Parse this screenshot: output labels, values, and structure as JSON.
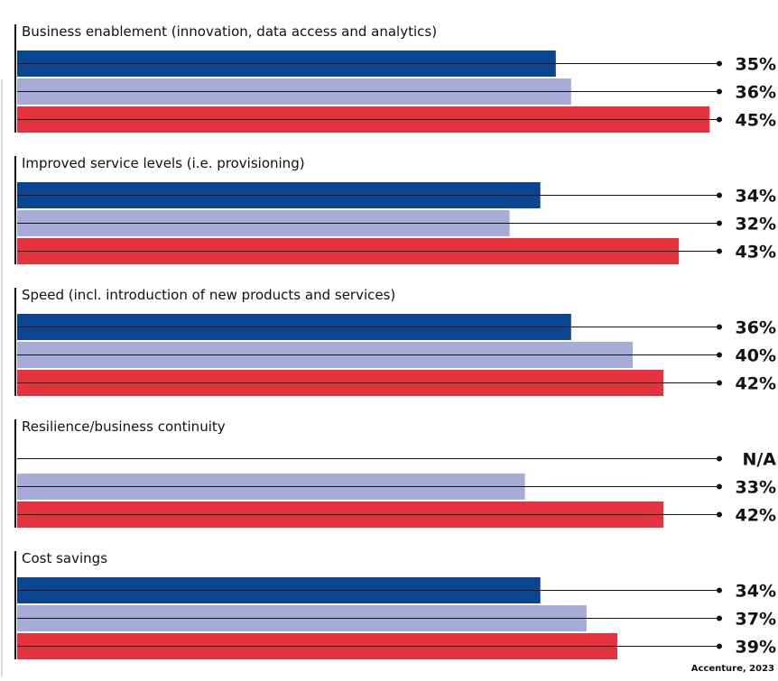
{
  "colors": {
    "series_1": "#0a4592",
    "series_2": "#a6acd7",
    "series_3": "#e5323f",
    "line": "#111111",
    "text": "#111111"
  },
  "chart_data": {
    "type": "bar",
    "orientation": "horizontal",
    "unit": "%",
    "xlim": [
      0,
      100
    ],
    "grid": false,
    "legend": "none",
    "categories": [
      "Business enablement (innovation, data access and analytics)",
      "Improved service levels (i.e. provisioning)",
      "Speed (incl. introduction of new products and services)",
      "Resilience/business continuity",
      "Cost savings"
    ],
    "series": [
      {
        "values": [
          35,
          34,
          36,
          null,
          34
        ],
        "color": "#0a4592"
      },
      {
        "values": [
          36,
          32,
          40,
          33,
          37
        ],
        "color": "#a6acd7"
      },
      {
        "values": [
          45,
          43,
          42,
          42,
          39
        ],
        "color": "#e5323f"
      }
    ],
    "value_labels": [
      [
        "35%",
        "36%",
        "45%"
      ],
      [
        "34%",
        "32%",
        "43%"
      ],
      [
        "36%",
        "40%",
        "42%"
      ],
      [
        "N/A",
        "33%",
        "42%"
      ],
      [
        "34%",
        "37%",
        "39%"
      ]
    ]
  },
  "source": "Accenture, 2023"
}
